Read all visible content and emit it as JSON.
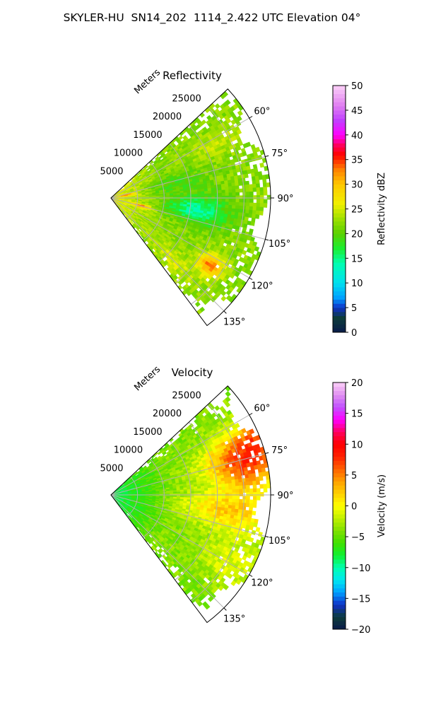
{
  "figure": {
    "title": "SKYLER-HU  SN14_202  1114_2.422 UTC Elevation 04°"
  },
  "chart_data": [
    {
      "type": "heatmap",
      "projection": "polar-sector",
      "title": "Reflectivity",
      "radial_axis_label": "Meters",
      "radial_ticks": [
        5000,
        10000,
        15000,
        20000,
        25000
      ],
      "radial_tick_labels": [
        "5000",
        "10000",
        "15000",
        "20000",
        "25000"
      ],
      "radial_range": [
        0,
        30000
      ],
      "azimuth_range_deg": [
        47,
        143
      ],
      "azimuth_ticks_deg": [
        60,
        75,
        90,
        105,
        120,
        135
      ],
      "azimuth_tick_labels": [
        "60°",
        "75°",
        "90°",
        "105°",
        "120°",
        "135°"
      ],
      "grid": true,
      "colorbar": {
        "label": "Reflectivity dBZ",
        "range": [
          0,
          50
        ],
        "ticks": [
          0,
          5,
          10,
          15,
          20,
          25,
          30,
          35,
          40,
          45,
          50
        ],
        "tick_labels": [
          "0",
          "5",
          "10",
          "15",
          "20",
          "25",
          "30",
          "35",
          "40",
          "45",
          "50"
        ],
        "color_stops": [
          [
            0,
            "#0a1a4a"
          ],
          [
            3,
            "#0d3d3a"
          ],
          [
            5,
            "#1030c8"
          ],
          [
            7,
            "#00a0ff"
          ],
          [
            10,
            "#00e0f0"
          ],
          [
            14,
            "#00ffb0"
          ],
          [
            17,
            "#1aee30"
          ],
          [
            20,
            "#5ad000"
          ],
          [
            23,
            "#9ee000"
          ],
          [
            26,
            "#f0f000"
          ],
          [
            30,
            "#ffc800"
          ],
          [
            33,
            "#ff8000"
          ],
          [
            36,
            "#ff0000"
          ],
          [
            38,
            "#ff0060"
          ],
          [
            40,
            "#ff00ff"
          ],
          [
            43,
            "#c040ff"
          ],
          [
            46,
            "#e080f0"
          ],
          [
            50,
            "#fcd0f8"
          ]
        ]
      },
      "field_features": [
        {
          "type": "base",
          "value": 22
        },
        {
          "type": "rel",
          "dist": [
            0.0,
            0.35
          ],
          "delta": 4
        },
        {
          "type": "blob",
          "az": 98,
          "r": 0.54,
          "saz": 9,
          "sr": 0.2,
          "delta": -8
        },
        {
          "type": "blob",
          "az": 78,
          "r": 0.4,
          "saz": 9,
          "sr": 0.2,
          "delta": -3
        },
        {
          "type": "blob",
          "az": 124,
          "r": 0.75,
          "saz": 5,
          "sr": 0.08,
          "delta": 11
        },
        {
          "type": "blob",
          "az": 105,
          "r": 0.2,
          "saz": 3,
          "sr": 0.06,
          "delta": 11
        },
        {
          "type": "blob",
          "az": 80,
          "r": 0.1,
          "saz": 4,
          "sr": 0.05,
          "delta": 9
        },
        {
          "type": "blob",
          "az": 135,
          "r": 0.55,
          "saz": 6,
          "sr": 0.2,
          "delta": 3
        },
        {
          "type": "blob",
          "az": 63,
          "r": 0.75,
          "saz": 6,
          "sr": 0.2,
          "delta": 2
        }
      ]
    },
    {
      "type": "heatmap",
      "projection": "polar-sector",
      "title": "Velocity",
      "radial_axis_label": "Meters",
      "radial_ticks": [
        5000,
        10000,
        15000,
        20000,
        25000
      ],
      "radial_tick_labels": [
        "5000",
        "10000",
        "15000",
        "20000",
        "25000"
      ],
      "radial_range": [
        0,
        30000
      ],
      "azimuth_range_deg": [
        47,
        143
      ],
      "azimuth_ticks_deg": [
        60,
        75,
        90,
        105,
        120,
        135
      ],
      "azimuth_tick_labels": [
        "60°",
        "75°",
        "90°",
        "105°",
        "120°",
        "135°"
      ],
      "grid": true,
      "colorbar": {
        "label": "Velocity (m/s)",
        "range": [
          -20,
          20
        ],
        "ticks": [
          -20,
          -15,
          -10,
          -5,
          0,
          5,
          10,
          15,
          20
        ],
        "tick_labels": [
          "−20",
          "−15",
          "−10",
          "−5",
          "0",
          "5",
          "10",
          "15",
          "20"
        ],
        "color_stops": [
          [
            -20,
            "#0a1a4a"
          ],
          [
            -18,
            "#0d3d3a"
          ],
          [
            -16,
            "#1030c8"
          ],
          [
            -14,
            "#00a0ff"
          ],
          [
            -12,
            "#00e8f0"
          ],
          [
            -10,
            "#00ffb0"
          ],
          [
            -8,
            "#10f030"
          ],
          [
            -6,
            "#40e000"
          ],
          [
            -4,
            "#80e000"
          ],
          [
            -2,
            "#c0f000"
          ],
          [
            0,
            "#ffff00"
          ],
          [
            2,
            "#ffd000"
          ],
          [
            4,
            "#ffa000"
          ],
          [
            6,
            "#ff6000"
          ],
          [
            8,
            "#ff2000"
          ],
          [
            10,
            "#ff0000"
          ],
          [
            12,
            "#ff0060"
          ],
          [
            14,
            "#ff00ff"
          ],
          [
            16,
            "#c050ff"
          ],
          [
            18,
            "#e090f0"
          ],
          [
            20,
            "#fcd0f8"
          ]
        ]
      },
      "field_features": [
        {
          "type": "base",
          "value": -4
        },
        {
          "type": "rel",
          "dist": [
            0.0,
            0.4
          ],
          "delta": -5
        },
        {
          "type": "blob",
          "az": 75,
          "r": 0.88,
          "saz": 12,
          "sr": 0.25,
          "delta": 12
        },
        {
          "type": "blob",
          "az": 67,
          "r": 1.0,
          "saz": 5,
          "sr": 0.12,
          "delta": 4
        },
        {
          "type": "blob",
          "az": 98,
          "r": 0.75,
          "saz": 10,
          "sr": 0.3,
          "delta": 6
        },
        {
          "type": "blob",
          "az": 120,
          "r": 0.85,
          "saz": 10,
          "sr": 0.2,
          "delta": 3
        }
      ]
    }
  ]
}
